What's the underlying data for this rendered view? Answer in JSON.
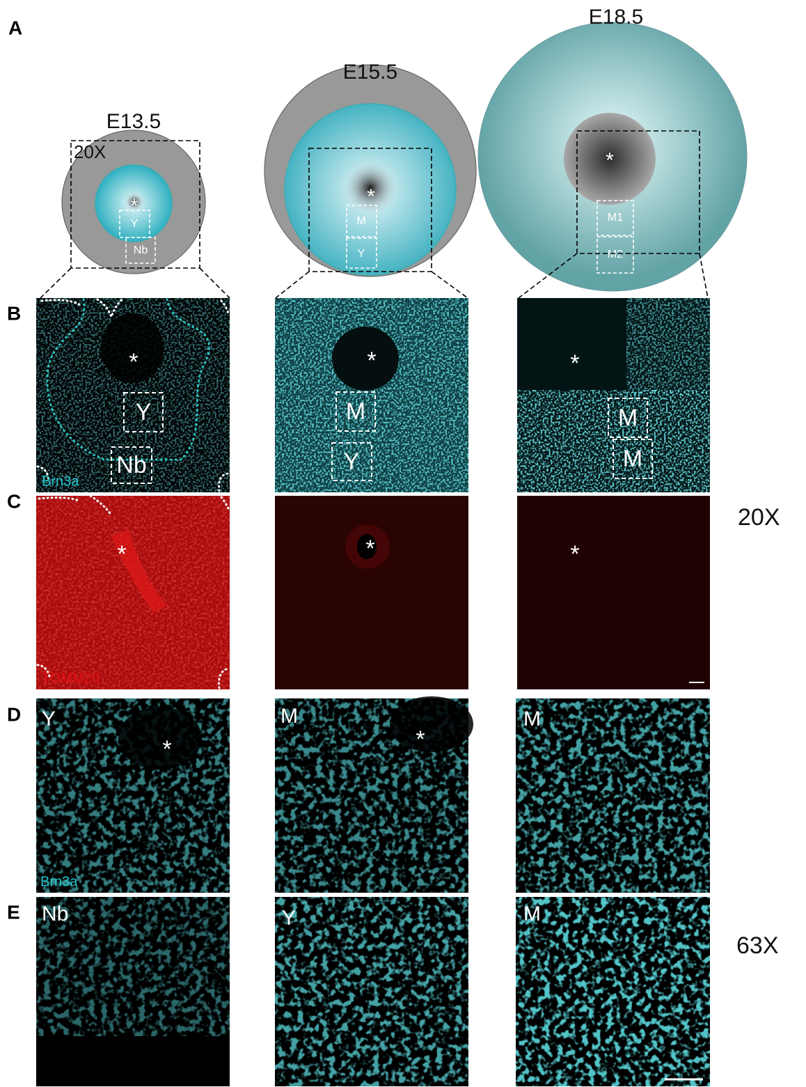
{
  "panel_labels": [
    "A",
    "B",
    "C",
    "D",
    "E"
  ],
  "diagrams": [
    {
      "stage": "E13.5",
      "magnification": "20X",
      "center": "*",
      "boxes": [
        "Y",
        "Nb"
      ]
    },
    {
      "stage": "E15.5",
      "center": "*",
      "boxes": [
        "M",
        "Y"
      ]
    },
    {
      "stage": "E18.5",
      "center": "*",
      "boxes": [
        "M1",
        "M2"
      ]
    }
  ],
  "row_b": [
    {
      "center": "*",
      "boxes": [
        "Y",
        "Nb"
      ],
      "stain": "Brn3a"
    },
    {
      "center": "*",
      "boxes": [
        "M",
        "Y"
      ]
    },
    {
      "center": "*",
      "boxes": [
        "M",
        "M"
      ]
    }
  ],
  "row_c": [
    {
      "center": "*",
      "stain": "TOMM20"
    },
    {
      "center": "*"
    },
    {
      "center": "*"
    }
  ],
  "row_d": [
    {
      "region": "Y",
      "center": "*",
      "stain": "Brn3a"
    },
    {
      "region": "M",
      "center": "*"
    },
    {
      "region": "M"
    }
  ],
  "row_e": [
    {
      "region": "Nb"
    },
    {
      "region": "Y"
    },
    {
      "region": "M"
    }
  ],
  "magnifications": [
    "20X",
    "63X"
  ]
}
